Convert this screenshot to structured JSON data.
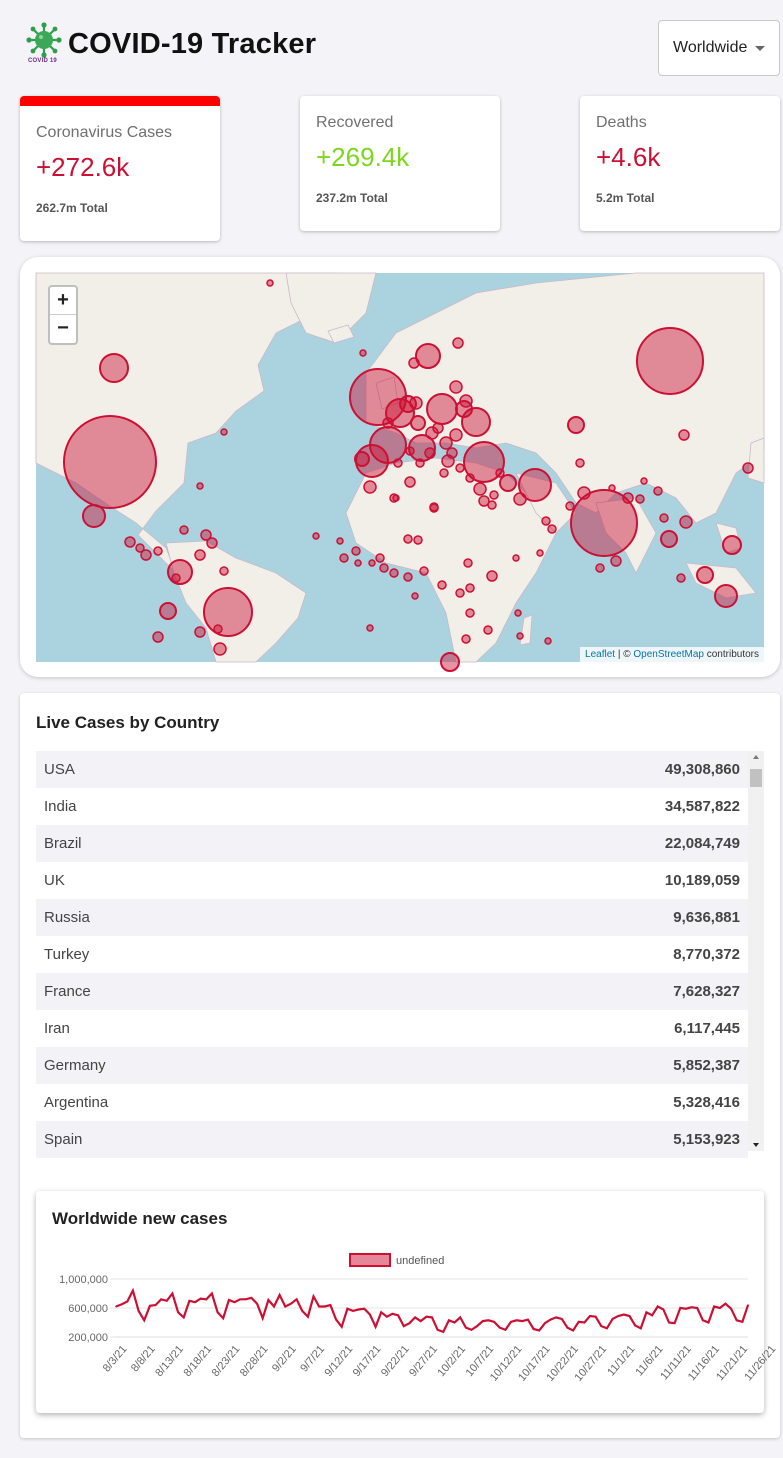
{
  "header": {
    "title": "COVID-19 Tracker",
    "logo_text": "COVID 19"
  },
  "country_select": {
    "selected": "Worldwide"
  },
  "info_cards": [
    {
      "title": "Coronavirus Cases",
      "value": "+272.6k",
      "total": "262.7m Total",
      "color": "#cc1034",
      "selected": true
    },
    {
      "title": "Recovered",
      "value": "+269.4k",
      "total": "237.2m Total",
      "color": "#7dd71d",
      "selected": false
    },
    {
      "title": "Deaths",
      "value": "+4.6k",
      "total": "5.2m Total",
      "color": "#cc1034",
      "selected": false
    }
  ],
  "map": {
    "zoom_in": "+",
    "zoom_out": "−",
    "attribution_leaflet": "Leaflet",
    "attribution_sep": " | © ",
    "attribution_osm": "OpenStreetMap",
    "attribution_suffix": " contributors",
    "circle_color": "#cc1034"
  },
  "table": {
    "title": "Live Cases by Country",
    "rows": [
      {
        "country": "USA",
        "cases": "49,308,860"
      },
      {
        "country": "India",
        "cases": "34,587,822"
      },
      {
        "country": "Brazil",
        "cases": "22,084,749"
      },
      {
        "country": "UK",
        "cases": "10,189,059"
      },
      {
        "country": "Russia",
        "cases": "9,636,881"
      },
      {
        "country": "Turkey",
        "cases": "8,770,372"
      },
      {
        "country": "France",
        "cases": "7,628,327"
      },
      {
        "country": "Iran",
        "cases": "6,117,445"
      },
      {
        "country": "Germany",
        "cases": "5,852,387"
      },
      {
        "country": "Argentina",
        "cases": "5,328,416"
      },
      {
        "country": "Spain",
        "cases": "5,153,923"
      }
    ]
  },
  "chart_title": "Worldwide new cases",
  "chart_data": {
    "type": "line",
    "title": "Worldwide new cases",
    "legend": "undefined",
    "legend_position": "top",
    "line_color": "#cc1034",
    "fill_color": "rgba(204,16,52,0.5)",
    "ylim": [
      0,
      1000000
    ],
    "yticks": [
      "1,000,000",
      "600,000",
      "200,000"
    ],
    "ytick_values": [
      1000000,
      600000,
      200000
    ],
    "x_start": "8/1/21",
    "x_ticks": [
      "8/3/21",
      "8/8/21",
      "8/13/21",
      "8/18/21",
      "8/23/21",
      "8/28/21",
      "9/2/21",
      "9/7/21",
      "9/12/21",
      "9/17/21",
      "9/22/21",
      "9/27/21",
      "10/2/21",
      "10/7/21",
      "10/12/21",
      "10/17/21",
      "10/22/21",
      "10/27/21",
      "11/1/21",
      "11/6/21",
      "11/11/21",
      "11/16/21",
      "11/21/21",
      "11/26/21"
    ],
    "values": [
      620000,
      650000,
      690000,
      840000,
      560000,
      430000,
      630000,
      640000,
      720000,
      700000,
      800000,
      540000,
      470000,
      700000,
      680000,
      730000,
      720000,
      800000,
      540000,
      460000,
      710000,
      680000,
      720000,
      720000,
      740000,
      660000,
      460000,
      710000,
      620000,
      780000,
      620000,
      660000,
      720000,
      560000,
      480000,
      760000,
      620000,
      620000,
      640000,
      440000,
      340000,
      590000,
      560000,
      580000,
      590000,
      510000,
      340000,
      540000,
      480000,
      520000,
      500000,
      350000,
      390000,
      470000,
      420000,
      480000,
      470000,
      300000,
      270000,
      430000,
      400000,
      470000,
      330000,
      300000,
      350000,
      420000,
      430000,
      410000,
      330000,
      300000,
      410000,
      430000,
      420000,
      440000,
      310000,
      290000,
      390000,
      440000,
      470000,
      450000,
      330000,
      290000,
      410000,
      400000,
      490000,
      480000,
      350000,
      320000,
      450000,
      490000,
      510000,
      490000,
      360000,
      320000,
      540000,
      500000,
      620000,
      580000,
      400000,
      390000,
      600000,
      590000,
      610000,
      600000,
      430000,
      400000,
      620000,
      600000,
      660000,
      590000,
      430000,
      410000,
      640000
    ]
  },
  "map_circles": [
    [
      114,
      95,
      14
    ],
    [
      110,
      189,
      46
    ],
    [
      94,
      243,
      11
    ],
    [
      228,
      339,
      24
    ],
    [
      180,
      299,
      12
    ],
    [
      168,
      338,
      8
    ],
    [
      158,
      364,
      5
    ],
    [
      200,
      359,
      5
    ],
    [
      220,
      376,
      6
    ],
    [
      378,
      124,
      28
    ],
    [
      388,
      172,
      18
    ],
    [
      400,
      140,
      14
    ],
    [
      372,
      188,
      16
    ],
    [
      422,
      175,
      13
    ],
    [
      442,
      136,
      15
    ],
    [
      476,
      149,
      14
    ],
    [
      484,
      189,
      20
    ],
    [
      428,
      83,
      12
    ],
    [
      464,
      136,
      8
    ],
    [
      456,
      114,
      6
    ],
    [
      408,
      131,
      8
    ],
    [
      418,
      150,
      7
    ],
    [
      432,
      160,
      6
    ],
    [
      446,
      170,
      6
    ],
    [
      416,
      130,
      6
    ],
    [
      362,
      186,
      7
    ],
    [
      370,
      214,
      6
    ],
    [
      394,
      225,
      4
    ],
    [
      410,
      209,
      5
    ],
    [
      434,
      235,
      4
    ],
    [
      448,
      188,
      6
    ],
    [
      456,
      162,
      6
    ],
    [
      466,
      128,
      6
    ],
    [
      508,
      210,
      8
    ],
    [
      520,
      226,
      6
    ],
    [
      535,
      212,
      16
    ],
    [
      576,
      152,
      8
    ],
    [
      584,
      220,
      6
    ],
    [
      604,
      250,
      33
    ],
    [
      616,
      288,
      5
    ],
    [
      628,
      225,
      5
    ],
    [
      640,
      226,
      4
    ],
    [
      670,
      88,
      33
    ],
    [
      684,
      162,
      5
    ],
    [
      686,
      249,
      6
    ],
    [
      669,
      266,
      8
    ],
    [
      732,
      272,
      9
    ],
    [
      705,
      302,
      8
    ],
    [
      726,
      323,
      11
    ],
    [
      681,
      305,
      4
    ],
    [
      664,
      245,
      4
    ],
    [
      748,
      195,
      5
    ],
    [
      484,
      228,
      5
    ],
    [
      480,
      216,
      6
    ],
    [
      492,
      232,
      4
    ],
    [
      546,
      248,
      4
    ],
    [
      552,
      256,
      4
    ],
    [
      418,
      267,
      4
    ],
    [
      434,
      234,
      4
    ],
    [
      396,
      225,
      3
    ],
    [
      380,
      285,
      4
    ],
    [
      408,
      266,
      4
    ],
    [
      468,
      290,
      4
    ],
    [
      492,
      303,
      5
    ],
    [
      470,
      315,
      4
    ],
    [
      466,
      366,
      4
    ],
    [
      450,
      389,
      9
    ],
    [
      218,
      356,
      4
    ],
    [
      176,
      305,
      4
    ],
    [
      130,
      269,
      5
    ],
    [
      140,
      275,
      4
    ],
    [
      146,
      282,
      5
    ],
    [
      158,
      278,
      4
    ],
    [
      184,
      257,
      4
    ],
    [
      206,
      262,
      5
    ],
    [
      212,
      270,
      5
    ],
    [
      200,
      282,
      5
    ],
    [
      224,
      298,
      4
    ],
    [
      270,
      10,
      3
    ],
    [
      224,
      159,
      3
    ],
    [
      200,
      213,
      3
    ],
    [
      316,
      263,
      3
    ],
    [
      340,
      268,
      3
    ],
    [
      344,
      285,
      4
    ],
    [
      356,
      278,
      4
    ],
    [
      358,
      290,
      3
    ],
    [
      372,
      290,
      3
    ],
    [
      384,
      295,
      4
    ],
    [
      394,
      300,
      4
    ],
    [
      408,
      304,
      4
    ],
    [
      424,
      298,
      4
    ],
    [
      442,
      312,
      4
    ],
    [
      460,
      320,
      4
    ],
    [
      470,
      340,
      4
    ],
    [
      488,
      357,
      4
    ],
    [
      518,
      340,
      3
    ],
    [
      548,
      368,
      3
    ],
    [
      370,
      355,
      3
    ],
    [
      415,
      323,
      3
    ],
    [
      520,
      363,
      3
    ],
    [
      600,
      295,
      4
    ],
    [
      570,
      233,
      4
    ],
    [
      580,
      190,
      4
    ],
    [
      612,
      215,
      3
    ],
    [
      644,
      208,
      3
    ],
    [
      658,
      218,
      4
    ],
    [
      516,
      285,
      3
    ],
    [
      540,
      280,
      3
    ],
    [
      414,
      90,
      5
    ],
    [
      458,
      70,
      5
    ],
    [
      363,
      80,
      3
    ],
    [
      410,
      178,
      4
    ],
    [
      388,
      150,
      5
    ],
    [
      398,
      190,
      4
    ],
    [
      444,
      200,
      4
    ],
    [
      460,
      195,
      4
    ],
    [
      470,
      205,
      4
    ],
    [
      494,
      222,
      4
    ],
    [
      500,
      200,
      4
    ],
    [
      430,
      180,
      5
    ],
    [
      438,
      155,
      5
    ],
    [
      452,
      180,
      5
    ],
    [
      420,
      190,
      4
    ]
  ]
}
